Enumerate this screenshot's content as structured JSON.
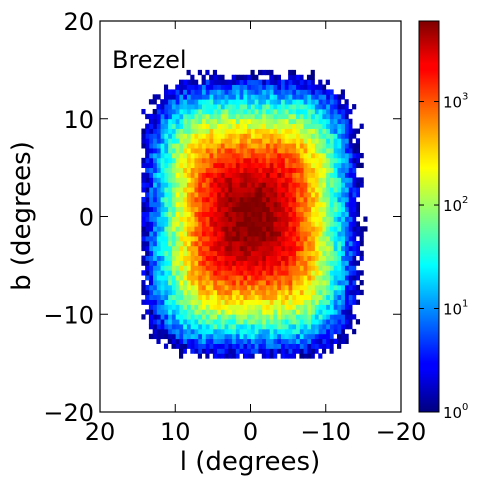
{
  "chart_data": {
    "type": "heatmap",
    "title": "",
    "annotation": "Brezel",
    "xlabel": "l (degrees)",
    "ylabel": "b (degrees)",
    "xlim": [
      20,
      -20
    ],
    "ylim": [
      -20,
      20
    ],
    "x_ticks": [
      20,
      10,
      0,
      -10,
      -20
    ],
    "y_ticks": [
      20,
      10,
      0,
      -10,
      -20
    ],
    "x_tick_labels": [
      "20",
      "10",
      "0",
      "−10",
      "−20"
    ],
    "y_tick_labels": [
      "20",
      "10",
      "0",
      "−10",
      "−20"
    ],
    "bin_size_deg": 0.5,
    "colorbar": {
      "scale": "log",
      "range": [
        1,
        6000
      ],
      "colormap": "jet",
      "ticks": [
        1,
        10,
        100,
        1000
      ],
      "tick_labels": [
        "10",
        "10",
        "10",
        "10"
      ],
      "tick_exponents": [
        "0",
        "1",
        "2",
        "3"
      ]
    },
    "density_model": {
      "shape": "boxy (peanut)",
      "center_l": 0,
      "center_b": 0,
      "peak_count": 6000,
      "boxiness_exponent": 4,
      "scale_l": 7.7,
      "scale_b": 7.7,
      "extent_l": [
        -15.5,
        14.5
      ],
      "extent_b": [
        -14.5,
        15
      ]
    },
    "grid": false,
    "legend": "none"
  }
}
